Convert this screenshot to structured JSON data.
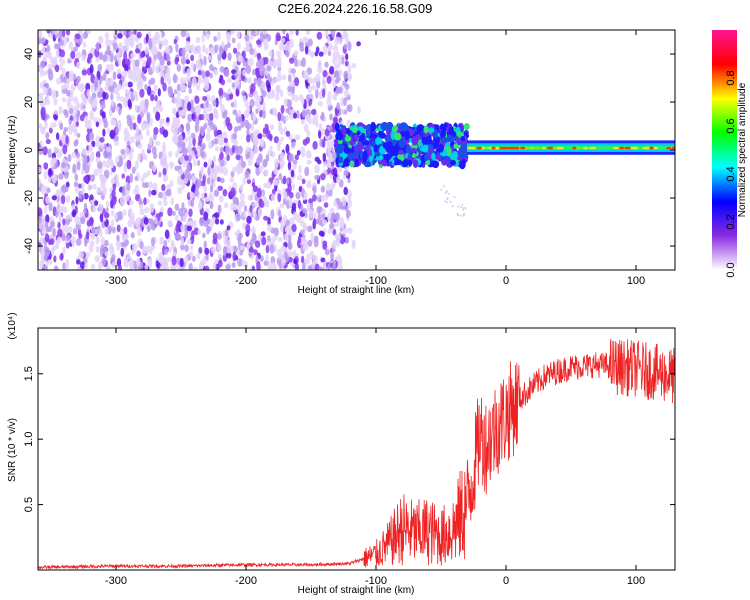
{
  "title": "C2E6.2024.226.16.58.G09",
  "chart_data": [
    {
      "type": "heatmap",
      "xlabel": "Height of straight line (km)",
      "ylabel": "Frequency (Hz)",
      "xlim": [
        -360,
        130
      ],
      "ylim": [
        -50,
        50
      ],
      "xticks": [
        -300,
        -200,
        -100,
        0,
        100
      ],
      "yticks": [
        -40,
        -20,
        0,
        20,
        40
      ],
      "colorbar": {
        "label": "Normalized spectral amplitude",
        "range": [
          0.0,
          1.0
        ],
        "ticks": [
          "0.0",
          "0.2",
          "0.4",
          "0.6",
          "0.8"
        ],
        "colors": [
          "#ffffff",
          "#8a2be2",
          "#0000ff",
          "#00ffff",
          "#00ff00",
          "#ffff00",
          "#ff0000",
          "#ff1493"
        ]
      },
      "regions": [
        {
          "x_range": [
            -360,
            -120
          ],
          "freq_range": [
            -50,
            50
          ],
          "amplitude": 0.08,
          "description_key": "broadband noise"
        },
        {
          "x_range": [
            -130,
            -30
          ],
          "freq_range": [
            -5,
            10
          ],
          "amplitude": 0.3
        },
        {
          "x_range": [
            -30,
            130
          ],
          "freq_range": [
            -1,
            4
          ],
          "amplitude": 0.6
        }
      ]
    },
    {
      "type": "line",
      "xlabel": "Height of straight line (km)",
      "ylabel": "SNR (10 * v/v)",
      "y_multiplier_label": "(x10⁴)",
      "xlim": [
        -360,
        130
      ],
      "ylim": [
        0,
        1.85
      ],
      "xticks": [
        -300,
        -200,
        -100,
        0,
        100
      ],
      "yticks": [
        0.5,
        1.0,
        1.5
      ],
      "ytick_labels": [
        "0.5",
        "1.0",
        "1.5"
      ],
      "series": [
        {
          "color": "#ee2222",
          "x": [
            -360,
            -300,
            -250,
            -200,
            -150,
            -120,
            -100,
            -90,
            -80,
            -70,
            -60,
            -50,
            -40,
            -30,
            -25,
            -20,
            -15,
            -10,
            -5,
            0,
            10,
            20,
            30,
            40,
            50,
            60,
            70,
            80,
            90,
            100,
            110,
            120,
            130
          ],
          "values": [
            0.02,
            0.03,
            0.03,
            0.04,
            0.04,
            0.05,
            0.12,
            0.2,
            0.32,
            0.28,
            0.3,
            0.25,
            0.32,
            0.5,
            0.75,
            1.05,
            0.95,
            1.05,
            1.12,
            1.18,
            1.3,
            1.4,
            1.48,
            1.52,
            1.55,
            1.56,
            1.57,
            1.56,
            1.55,
            1.54,
            1.52,
            1.5,
            1.48
          ]
        }
      ]
    }
  ]
}
